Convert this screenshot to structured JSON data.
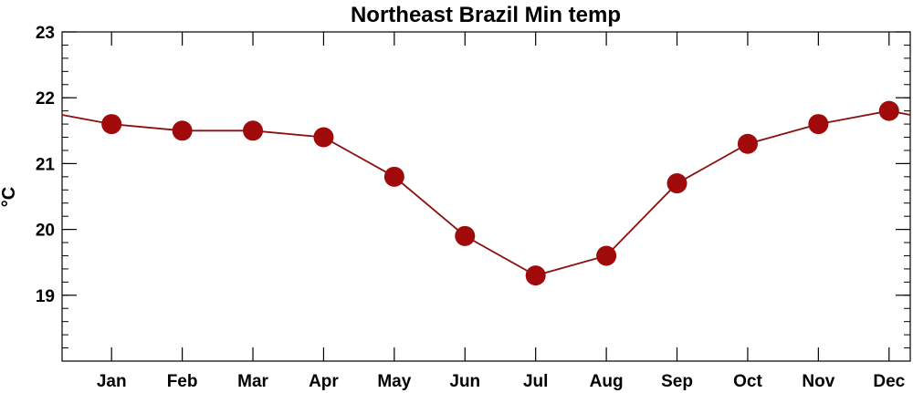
{
  "chart_data": {
    "type": "line",
    "title": "Northeast Brazil Min temp",
    "xlabel": "",
    "ylabel": "°C",
    "categories": [
      "Jan",
      "Feb",
      "Mar",
      "Apr",
      "May",
      "Jun",
      "Jul",
      "Aug",
      "Sep",
      "Oct",
      "Nov",
      "Dec"
    ],
    "series": [
      {
        "values": [
          21.6,
          21.5,
          21.5,
          21.4,
          20.8,
          19.9,
          19.3,
          19.6,
          20.7,
          21.3,
          21.6,
          21.8
        ]
      }
    ],
    "ylim": [
      18.0,
      23.0
    ],
    "yticks": [
      "19",
      "20",
      "21",
      "22",
      "23"
    ],
    "grid": false,
    "legend": "none",
    "wraps_cyclically": true,
    "colors": {
      "line": "#8b1010",
      "marker": "#a00a0a",
      "axis": "#000000"
    }
  }
}
